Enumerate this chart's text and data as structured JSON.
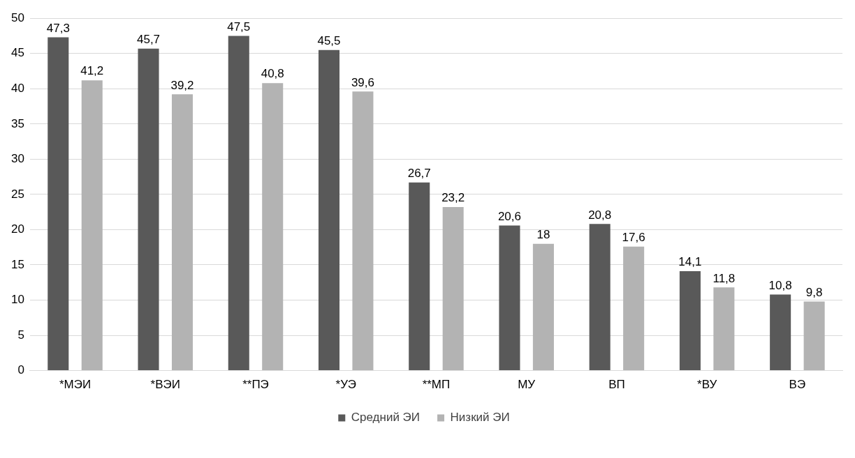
{
  "chart_data": {
    "type": "bar",
    "categories": [
      "*МЭИ",
      "*ВЭИ",
      "**ПЭ",
      "*УЭ",
      "**МП",
      "МУ",
      "ВП",
      "*ВУ",
      "ВЭ"
    ],
    "series": [
      {
        "name": "Средний ЭИ",
        "color": "#595959",
        "values": [
          47.3,
          45.7,
          47.5,
          45.5,
          26.7,
          20.6,
          20.8,
          14.1,
          10.8
        ],
        "value_labels": [
          "47,3",
          "45,7",
          "47,5",
          "45,5",
          "26,7",
          "20,6",
          "20,8",
          "14,1",
          "10,8"
        ]
      },
      {
        "name": "Низкий ЭИ",
        "color": "#b3b3b3",
        "values": [
          41.2,
          39.2,
          40.8,
          39.6,
          23.2,
          18,
          17.6,
          11.8,
          9.8
        ],
        "value_labels": [
          "41,2",
          "39,2",
          "40,8",
          "39,6",
          "23,2",
          "18",
          "17,6",
          "11,8",
          "9,8"
        ]
      }
    ],
    "ylim": [
      0,
      50
    ],
    "yticks": [
      0,
      5,
      10,
      15,
      20,
      25,
      30,
      35,
      40,
      45,
      50
    ],
    "grid": "y",
    "legend": "bottom"
  }
}
